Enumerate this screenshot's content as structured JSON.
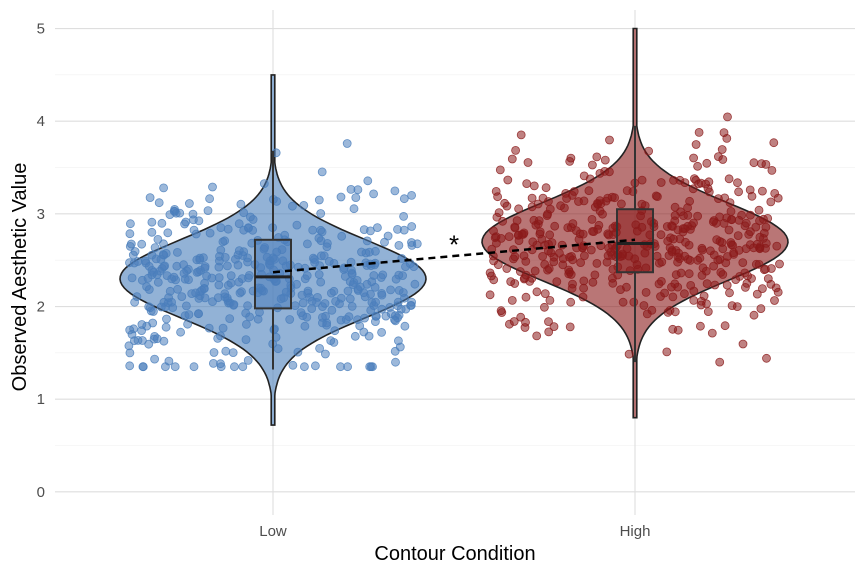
{
  "chart_data": {
    "type": "violin",
    "xlabel": "Contour Condition",
    "ylabel": "Observed Aesthetic Value",
    "ylim": [
      -0.25,
      5.2
    ],
    "yticks": [
      0,
      1,
      2,
      3,
      4,
      5
    ],
    "grid": true,
    "categories": [
      "Low",
      "High"
    ],
    "colors": {
      "Low": "#4a7ebb",
      "High": "#8b1a1a"
    },
    "groups": [
      {
        "category": "Low",
        "n_points_approx": 450,
        "violin_range": [
          0.72,
          4.5
        ],
        "density_mode": 2.3,
        "box": {
          "whisker_low": 1.32,
          "q1": 1.98,
          "median": 2.32,
          "q3": 2.72,
          "whisker_high": 3.68
        },
        "mean": 2.37,
        "point_range": [
          1.35,
          3.9
        ]
      },
      {
        "category": "High",
        "n_points_approx": 450,
        "violin_range": [
          0.8,
          5.0
        ],
        "density_mode": 2.7,
        "box": {
          "whisker_low": 1.4,
          "q1": 2.37,
          "median": 2.68,
          "q3": 3.05,
          "whisker_high": 3.95
        },
        "mean": 2.72,
        "point_range": [
          1.4,
          4.48
        ]
      }
    ],
    "mean_line": {
      "style": "dashed",
      "from": 2.37,
      "to": 2.72
    },
    "annotation": {
      "text": "*",
      "y": 2.7
    }
  }
}
